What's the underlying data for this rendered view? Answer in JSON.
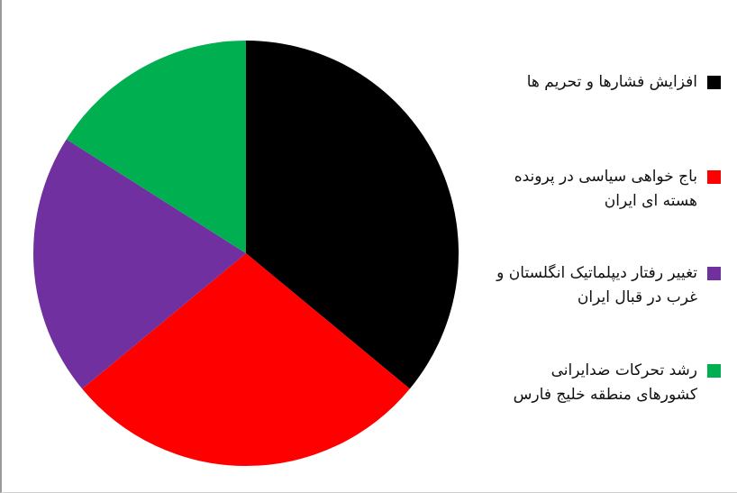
{
  "chart_data": {
    "type": "pie",
    "title": "",
    "start_angle_deg": 0,
    "direction": "clockwise",
    "legend_position": "right",
    "slices": [
      {
        "label": "افزایش فشارها و تحریم ها",
        "value": 36,
        "color": "#000000"
      },
      {
        "label": "باج خواهی سیاسی در پرونده هسته ای ایران",
        "value": 28,
        "color": "#ff0000"
      },
      {
        "label": "تغییر رفتار دیپلماتیک انگلستان و غرب در قبال ایران",
        "value": 20,
        "color": "#7030a0"
      },
      {
        "label": "رشد تحرکات ضدایرانی کشورهای منطقه خلیج فارس",
        "value": 16,
        "color": "#00b050"
      }
    ]
  }
}
